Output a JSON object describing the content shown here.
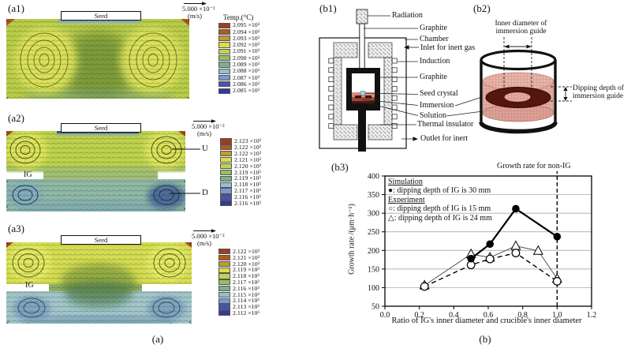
{
  "panels_a": {
    "seed_label": "Seed",
    "velocity_scale": "5.000 ×10⁻²",
    "velocity_unit": "(m/s)",
    "temp_colors": [
      "#9c3f1c",
      "#b05a22",
      "#c09a30",
      "#d9dc4e",
      "#bcd44f",
      "#93bf63",
      "#7fae8d",
      "#95c0cf",
      "#7b97d4",
      "#4953ae",
      "#2f3b9c"
    ],
    "a1": {
      "label": "(a1)",
      "legend_title": "Temp.(°C)",
      "legend_values": [
        "2.095 ×10³",
        "2.094 ×10³",
        "2.093 ×10³",
        "2.092 ×10³",
        "2.091 ×10³",
        "2.090 ×10³",
        "2.089 ×10³",
        "2.088 ×10³",
        "2.087 ×10³",
        "2.086 ×10³",
        "2.085 ×10³"
      ]
    },
    "a2": {
      "label": "(a2)",
      "ig_label": "IG",
      "u_label": "U",
      "d_label": "D",
      "legend_values": [
        "2.123 ×10³",
        "2.122 ×10³",
        "2.122 ×10³",
        "2.121 ×10³",
        "2.120 ×10³",
        "2.119 ×10³",
        "2.119 ×10³",
        "2.118 ×10³",
        "2.117 ×10³",
        "2.116 ×10³",
        "2.116 ×10³"
      ]
    },
    "a3": {
      "label": "(a3)",
      "ig_label": "IG",
      "legend_values": [
        "2.122 ×10³",
        "2.121 ×10³",
        "2.120 ×10³",
        "2.119 ×10³",
        "2.118 ×10³",
        "2.117 ×10³",
        "2.116 ×10³",
        "2.115 ×10³",
        "2.114 ×10³",
        "2.113 ×10³",
        "2.112 ×10³"
      ]
    },
    "caption": "(a)"
  },
  "panel_b1": {
    "label": "(b1)",
    "labels": [
      "Radiation",
      "Graphite",
      "Chamber",
      "Inlet for inert gas",
      "Induction",
      "Graphite",
      "Seed crystal",
      "Immersion",
      "Solution",
      "Thermal insulator",
      "Outlet for inert"
    ]
  },
  "panel_b2": {
    "label": "(b2)",
    "inner_diameter_line1": "Inner diameter of",
    "inner_diameter_line2": "immersion guide",
    "dipping_line1": "Dipping depth of",
    "dipping_line2": "immersion guide"
  },
  "panel_b3": {
    "label": "(b3)",
    "legend": {
      "simulation_header": "Simulation",
      "sim_item": "●: dipping depth of IG is 30 mm",
      "experiment_header": "Experiment",
      "exp_item_15": "○: dipping depth of IG is 15 mm",
      "exp_item_24": "△: dipping depth of IG is 24 mm"
    }
  },
  "caption_b": "(b)",
  "chart_data": {
    "type": "line",
    "title": "",
    "xlabel": "Ratio of IG's inner diameter and crucible's inner diameter",
    "ylabel": "Growth rate /(μm·h⁻¹)",
    "xlim": [
      0,
      1.2
    ],
    "ylim": [
      50,
      400
    ],
    "xticks": [
      0,
      0.2,
      0.4,
      0.6,
      0.8,
      1.0,
      1.2
    ],
    "yticks": [
      50,
      100,
      150,
      200,
      250,
      300,
      350,
      400
    ],
    "grid": "horizontal",
    "legend_position": "top-left-inside",
    "annotation": {
      "text": "Growth rate for non-IG",
      "x": 1.0
    },
    "series": [
      {
        "name": "Simulation: dipping depth of IG is 30 mm",
        "marker": "filled-circle",
        "line": "solid",
        "points": [
          [
            0.5,
            178
          ],
          [
            0.61,
            217
          ],
          [
            0.76,
            312
          ],
          [
            1.0,
            237
          ]
        ]
      },
      {
        "name": "Experiment: dipping depth of IG is 15 mm",
        "marker": "open-circle",
        "line": "dashed",
        "points": [
          [
            0.23,
            103
          ],
          [
            0.5,
            161
          ],
          [
            0.61,
            177
          ],
          [
            0.76,
            193
          ],
          [
            1.0,
            117
          ]
        ]
      },
      {
        "name": "Experiment: dipping depth of IG is 24 mm",
        "marker": "open-triangle",
        "line": "thin",
        "points": [
          [
            0.23,
            106
          ],
          [
            0.5,
            190
          ],
          [
            0.61,
            181
          ],
          [
            0.76,
            212
          ],
          [
            0.89,
            199
          ],
          [
            1.0,
            124
          ]
        ]
      }
    ]
  }
}
